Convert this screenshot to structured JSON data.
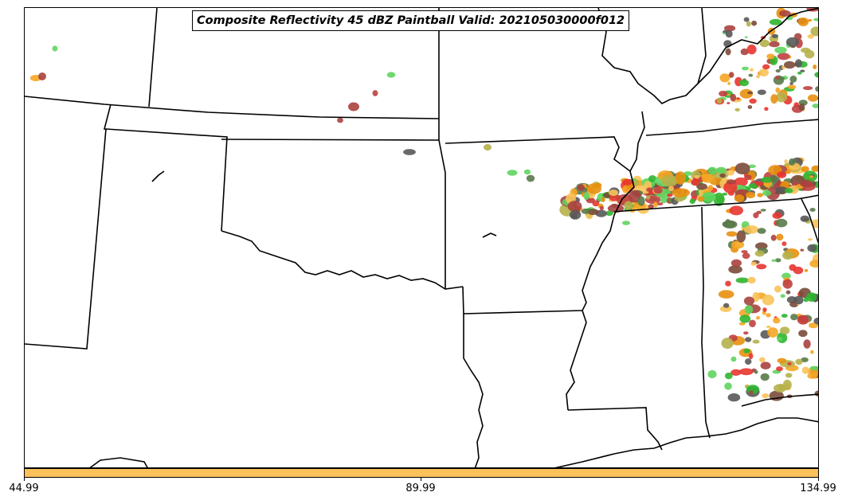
{
  "title": "Composite Reflectivity 45 dBZ Paintball Valid: 202105030000f012",
  "colorbar": {
    "color": "#fcc15b",
    "tick_labels": [
      "44.99",
      "89.99",
      "134.99"
    ]
  },
  "paint_colors": [
    "#5fd45f",
    "#2fb52f",
    "#a8423f",
    "#e83530",
    "#f5a623",
    "#e8900f",
    "#5a7a4a",
    "#7a4a3a",
    "#b5b14a",
    "#595959",
    "#c04040",
    "#f8c35a"
  ]
}
